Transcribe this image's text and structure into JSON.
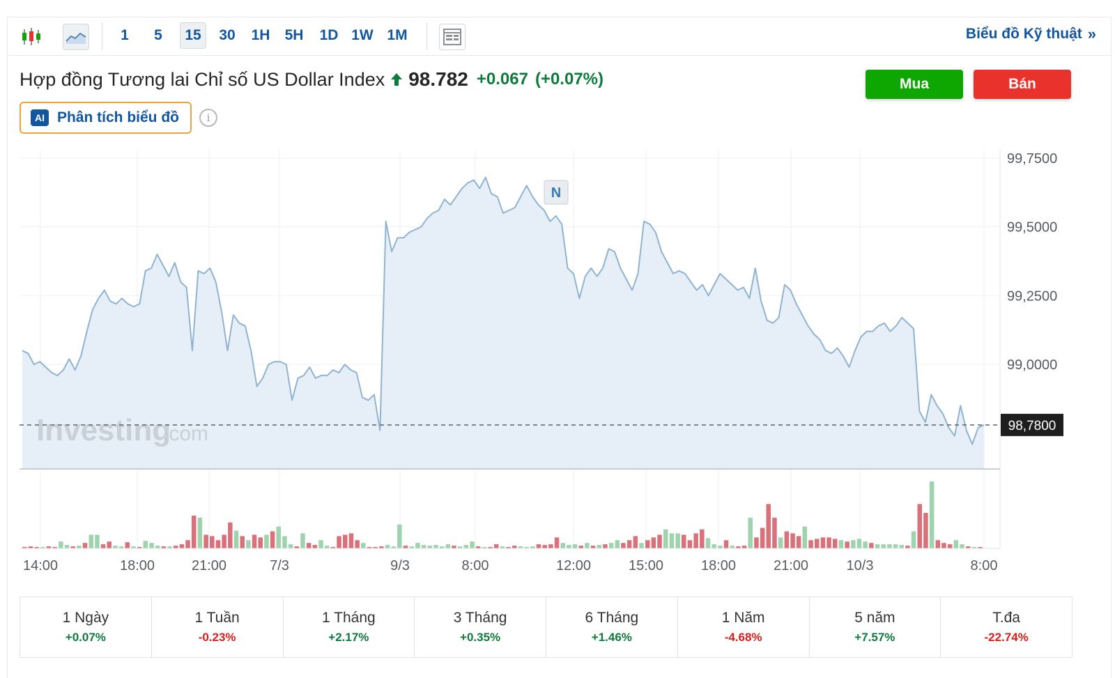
{
  "toolbar": {
    "timeframes": [
      "1",
      "5",
      "15",
      "30",
      "1H",
      "5H",
      "1D",
      "1W",
      "1M"
    ],
    "active_timeframe": "15",
    "tech_link": "Biểu đồ Kỹ thuật",
    "tech_link_arrow": "»"
  },
  "instrument": {
    "name": "Hợp đồng Tương lai Chỉ số US Dollar Index",
    "price": "98.782",
    "change": "+0.067",
    "change_pct": "(+0.07%)"
  },
  "actions": {
    "buy": "Mua",
    "sell": "Bán"
  },
  "ai": {
    "badge": "AI",
    "label": "Phân tích biểu đồ",
    "info": "i"
  },
  "chart_data": {
    "type": "area",
    "title": "",
    "xlabel": "",
    "ylabel": "",
    "x_ticks": [
      "14:00",
      "18:00",
      "21:00",
      "7/3",
      "9/3",
      "8:00",
      "12:00",
      "15:00",
      "18:00",
      "21:00",
      "10/3",
      "8:00"
    ],
    "y_ticks": [
      "99,7500",
      "99,5000",
      "99,2500",
      "99,0000"
    ],
    "ylim": [
      98.62,
      99.78
    ],
    "current_value": 98.78,
    "current_label": "98,7800",
    "watermark": "Investing",
    "watermark_suffix": ".com",
    "event_marker": "N",
    "grid": true,
    "series": [
      {
        "values": [
          99.05,
          99.04,
          99.0,
          99.01,
          98.99,
          98.97,
          98.96,
          98.98,
          99.02,
          98.98,
          99.03,
          99.12,
          99.2,
          99.24,
          99.27,
          99.23,
          99.22,
          99.24,
          99.22,
          99.21,
          99.22,
          99.34,
          99.35,
          99.4,
          99.36,
          99.32,
          99.37,
          99.3,
          99.28,
          99.05,
          99.34,
          99.33,
          99.35,
          99.3,
          99.19,
          99.05,
          99.18,
          99.15,
          99.14,
          99.05,
          98.92,
          98.95,
          99.0,
          99.01,
          99.01,
          99.0,
          98.87,
          98.95,
          98.96,
          98.99,
          98.95,
          98.96,
          98.96,
          98.98,
          98.97,
          99.0,
          98.98,
          98.97,
          98.88,
          98.87,
          98.89,
          98.76,
          99.52,
          99.41,
          99.46,
          99.46,
          99.48,
          99.49,
          99.5,
          99.53,
          99.55,
          99.56,
          99.6,
          99.58,
          99.61,
          99.64,
          99.66,
          99.67,
          99.64,
          99.68,
          99.62,
          99.61,
          99.55,
          99.56,
          99.57,
          99.61,
          99.65,
          99.61,
          99.58,
          99.56,
          99.52,
          99.54,
          99.51,
          99.35,
          99.33,
          99.24,
          99.32,
          99.35,
          99.32,
          99.35,
          99.42,
          99.41,
          99.35,
          99.31,
          99.27,
          99.33,
          99.52,
          99.51,
          99.48,
          99.41,
          99.37,
          99.33,
          99.34,
          99.33,
          99.3,
          99.27,
          99.29,
          99.25,
          99.29,
          99.33,
          99.31,
          99.29,
          99.27,
          99.28,
          99.24,
          99.35,
          99.23,
          99.16,
          99.15,
          99.17,
          99.29,
          99.27,
          99.22,
          99.18,
          99.14,
          99.11,
          99.09,
          99.05,
          99.04,
          99.06,
          99.03,
          98.99,
          99.05,
          99.1,
          99.12,
          99.12,
          99.14,
          99.15,
          99.12,
          99.14,
          99.17,
          99.15,
          99.13,
          98.83,
          98.79,
          98.89,
          98.85,
          98.82,
          98.77,
          98.74,
          98.85,
          98.76,
          98.71,
          98.77,
          98.78
        ]
      }
    ],
    "volume": [
      {
        "v": 2,
        "c": "r"
      },
      {
        "v": 3,
        "c": "r"
      },
      {
        "v": 2,
        "c": "r"
      },
      {
        "v": 2,
        "c": "g"
      },
      {
        "v": 3,
        "c": "r"
      },
      {
        "v": 2,
        "c": "r"
      },
      {
        "v": 10,
        "c": "g"
      },
      {
        "v": 5,
        "c": "g"
      },
      {
        "v": 3,
        "c": "r"
      },
      {
        "v": 4,
        "c": "g"
      },
      {
        "v": 8,
        "c": "r"
      },
      {
        "v": 20,
        "c": "g"
      },
      {
        "v": 20,
        "c": "g"
      },
      {
        "v": 6,
        "c": "r"
      },
      {
        "v": 10,
        "c": "r"
      },
      {
        "v": 4,
        "c": "g"
      },
      {
        "v": 3,
        "c": "g"
      },
      {
        "v": 9,
        "c": "r"
      },
      {
        "v": 3,
        "c": "g"
      },
      {
        "v": 2,
        "c": "r"
      },
      {
        "v": 11,
        "c": "g"
      },
      {
        "v": 8,
        "c": "g"
      },
      {
        "v": 4,
        "c": "g"
      },
      {
        "v": 3,
        "c": "r"
      },
      {
        "v": 3,
        "c": "g"
      },
      {
        "v": 4,
        "c": "r"
      },
      {
        "v": 6,
        "c": "r"
      },
      {
        "v": 12,
        "c": "r"
      },
      {
        "v": 48,
        "c": "r"
      },
      {
        "v": 45,
        "c": "g"
      },
      {
        "v": 20,
        "c": "r"
      },
      {
        "v": 18,
        "c": "r"
      },
      {
        "v": 12,
        "c": "r"
      },
      {
        "v": 20,
        "c": "r"
      },
      {
        "v": 38,
        "c": "r"
      },
      {
        "v": 26,
        "c": "g"
      },
      {
        "v": 18,
        "c": "r"
      },
      {
        "v": 12,
        "c": "g"
      },
      {
        "v": 20,
        "c": "r"
      },
      {
        "v": 16,
        "c": "r"
      },
      {
        "v": 20,
        "c": "g"
      },
      {
        "v": 25,
        "c": "r"
      },
      {
        "v": 32,
        "c": "g"
      },
      {
        "v": 18,
        "c": "g"
      },
      {
        "v": 6,
        "c": "g"
      },
      {
        "v": 3,
        "c": "r"
      },
      {
        "v": 22,
        "c": "g"
      },
      {
        "v": 8,
        "c": "r"
      },
      {
        "v": 5,
        "c": "r"
      },
      {
        "v": 12,
        "c": "g"
      },
      {
        "v": 4,
        "c": "g"
      },
      {
        "v": 2,
        "c": "r"
      },
      {
        "v": 18,
        "c": "r"
      },
      {
        "v": 20,
        "c": "r"
      },
      {
        "v": 22,
        "c": "r"
      },
      {
        "v": 12,
        "c": "r"
      },
      {
        "v": 8,
        "c": "g"
      },
      {
        "v": 2,
        "c": "r"
      },
      {
        "v": 2,
        "c": "r"
      },
      {
        "v": 3,
        "c": "r"
      },
      {
        "v": 5,
        "c": "g"
      },
      {
        "v": 3,
        "c": "g"
      },
      {
        "v": 35,
        "c": "g"
      },
      {
        "v": 4,
        "c": "r"
      },
      {
        "v": 3,
        "c": "g"
      },
      {
        "v": 8,
        "c": "g"
      },
      {
        "v": 5,
        "c": "g"
      },
      {
        "v": 4,
        "c": "g"
      },
      {
        "v": 5,
        "c": "g"
      },
      {
        "v": 3,
        "c": "g"
      },
      {
        "v": 6,
        "c": "g"
      },
      {
        "v": 4,
        "c": "r"
      },
      {
        "v": 3,
        "c": "g"
      },
      {
        "v": 5,
        "c": "g"
      },
      {
        "v": 10,
        "c": "g"
      },
      {
        "v": 3,
        "c": "r"
      },
      {
        "v": 2,
        "c": "g"
      },
      {
        "v": 2,
        "c": "r"
      },
      {
        "v": 6,
        "c": "r"
      },
      {
        "v": 3,
        "c": "g"
      },
      {
        "v": 2,
        "c": "r"
      },
      {
        "v": 4,
        "c": "r"
      },
      {
        "v": 3,
        "c": "g"
      },
      {
        "v": 2,
        "c": "g"
      },
      {
        "v": 3,
        "c": "g"
      },
      {
        "v": 6,
        "c": "r"
      },
      {
        "v": 5,
        "c": "r"
      },
      {
        "v": 6,
        "c": "r"
      },
      {
        "v": 16,
        "c": "r"
      },
      {
        "v": 8,
        "c": "g"
      },
      {
        "v": 5,
        "c": "g"
      },
      {
        "v": 6,
        "c": "g"
      },
      {
        "v": 4,
        "c": "r"
      },
      {
        "v": 8,
        "c": "g"
      },
      {
        "v": 4,
        "c": "r"
      },
      {
        "v": 5,
        "c": "g"
      },
      {
        "v": 6,
        "c": "r"
      },
      {
        "v": 8,
        "c": "g"
      },
      {
        "v": 12,
        "c": "g"
      },
      {
        "v": 8,
        "c": "r"
      },
      {
        "v": 12,
        "c": "r"
      },
      {
        "v": 18,
        "c": "r"
      },
      {
        "v": 8,
        "c": "g"
      },
      {
        "v": 12,
        "c": "r"
      },
      {
        "v": 16,
        "c": "r"
      },
      {
        "v": 20,
        "c": "r"
      },
      {
        "v": 28,
        "c": "g"
      },
      {
        "v": 22,
        "c": "g"
      },
      {
        "v": 22,
        "c": "g"
      },
      {
        "v": 20,
        "c": "r"
      },
      {
        "v": 12,
        "c": "r"
      },
      {
        "v": 22,
        "c": "r"
      },
      {
        "v": 28,
        "c": "r"
      },
      {
        "v": 15,
        "c": "g"
      },
      {
        "v": 6,
        "c": "g"
      },
      {
        "v": 4,
        "c": "g"
      },
      {
        "v": 12,
        "c": "r"
      },
      {
        "v": 4,
        "c": "g"
      },
      {
        "v": 3,
        "c": "r"
      },
      {
        "v": 4,
        "c": "r"
      },
      {
        "v": 45,
        "c": "g"
      },
      {
        "v": 16,
        "c": "r"
      },
      {
        "v": 30,
        "c": "r"
      },
      {
        "v": 65,
        "c": "r"
      },
      {
        "v": 45,
        "c": "r"
      },
      {
        "v": 16,
        "c": "g"
      },
      {
        "v": 25,
        "c": "r"
      },
      {
        "v": 22,
        "c": "r"
      },
      {
        "v": 18,
        "c": "r"
      },
      {
        "v": 32,
        "c": "g"
      },
      {
        "v": 12,
        "c": "r"
      },
      {
        "v": 14,
        "c": "r"
      },
      {
        "v": 16,
        "c": "r"
      },
      {
        "v": 16,
        "c": "r"
      },
      {
        "v": 14,
        "c": "r"
      },
      {
        "v": 12,
        "c": "g"
      },
      {
        "v": 10,
        "c": "r"
      },
      {
        "v": 12,
        "c": "g"
      },
      {
        "v": 14,
        "c": "g"
      },
      {
        "v": 10,
        "c": "g"
      },
      {
        "v": 8,
        "c": "r"
      },
      {
        "v": 6,
        "c": "g"
      },
      {
        "v": 6,
        "c": "g"
      },
      {
        "v": 6,
        "c": "g"
      },
      {
        "v": 6,
        "c": "g"
      },
      {
        "v": 5,
        "c": "g"
      },
      {
        "v": 4,
        "c": "r"
      },
      {
        "v": 25,
        "c": "g"
      },
      {
        "v": 65,
        "c": "r"
      },
      {
        "v": 52,
        "c": "r"
      },
      {
        "v": 98,
        "c": "g"
      },
      {
        "v": 12,
        "c": "r"
      },
      {
        "v": 8,
        "c": "r"
      },
      {
        "v": 6,
        "c": "r"
      },
      {
        "v": 12,
        "c": "g"
      },
      {
        "v": 6,
        "c": "g"
      },
      {
        "v": 3,
        "c": "r"
      },
      {
        "v": 2,
        "c": "g"
      },
      {
        "v": 2,
        "c": "r"
      }
    ],
    "volume_max": 98
  },
  "performance": [
    {
      "label": "1 Ngày",
      "value": "+0.07%",
      "dir": "pos"
    },
    {
      "label": "1 Tuần",
      "value": "-0.23%",
      "dir": "neg"
    },
    {
      "label": "1 Tháng",
      "value": "+2.17%",
      "dir": "pos"
    },
    {
      "label": "3 Tháng",
      "value": "+0.35%",
      "dir": "pos"
    },
    {
      "label": "6 Tháng",
      "value": "+1.46%",
      "dir": "pos"
    },
    {
      "label": "1 Năm",
      "value": "-4.68%",
      "dir": "neg"
    },
    {
      "label": "5 năm",
      "value": "+7.57%",
      "dir": "pos"
    },
    {
      "label": "T.đa",
      "value": "-22.74%",
      "dir": "neg"
    }
  ],
  "colors": {
    "up": "#0e7a3c",
    "down": "#d91e18",
    "line": "#8fb3d1",
    "area": "#e3edf6",
    "vol_up": "#9fd3ad",
    "vol_down": "#d9707a",
    "link": "#1256a0",
    "buy": "#0ea600",
    "sell": "#e8322b"
  }
}
